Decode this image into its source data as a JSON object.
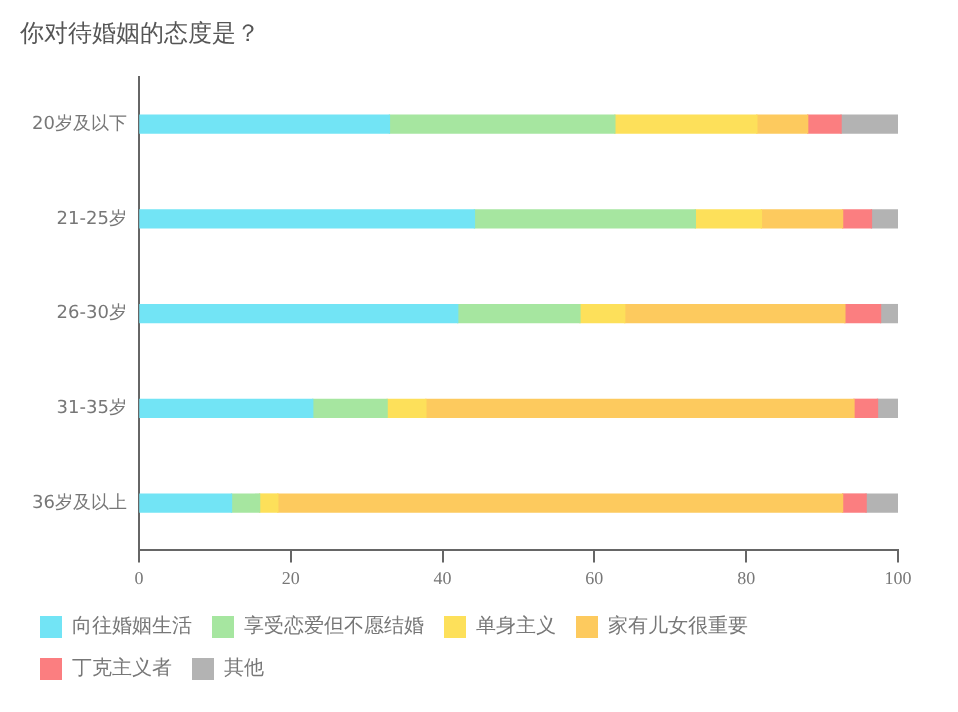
{
  "chart_data": {
    "type": "bar",
    "orientation": "horizontal",
    "stacked": true,
    "title": "你对待婚姻的态度是？",
    "categories": [
      "20岁及以下",
      "21-25岁",
      "26-30岁",
      "31-35岁",
      "36岁及以上"
    ],
    "series": [
      {
        "name": "向往婚姻生活",
        "color": "#72e4f5",
        "values": [
          33,
          44.2,
          42,
          22.9,
          12.2
        ]
      },
      {
        "name": "享受恋爱但不愿结婚",
        "color": "#a6e6a0",
        "values": [
          29.7,
          29.1,
          16.1,
          9.8,
          3.7
        ]
      },
      {
        "name": "单身主义",
        "color": "#fde05a",
        "values": [
          18.7,
          8.7,
          5.9,
          5.1,
          2.4
        ]
      },
      {
        "name": "家有儿女很重要",
        "color": "#fdca5e",
        "values": [
          6.7,
          10.7,
          29,
          56.4,
          74.4
        ]
      },
      {
        "name": "丁克主义者",
        "color": "#fb7e80",
        "values": [
          4.4,
          3.8,
          4.7,
          3.1,
          3.1
        ]
      },
      {
        "name": "其他",
        "color": "#b3b3b3",
        "values": [
          7.5,
          3.5,
          2.3,
          2.7,
          4.2
        ]
      }
    ],
    "xlim": [
      0,
      100
    ],
    "xticks": [
      0,
      20,
      40,
      60,
      80,
      100
    ],
    "grid": false,
    "legend": "bottom"
  }
}
